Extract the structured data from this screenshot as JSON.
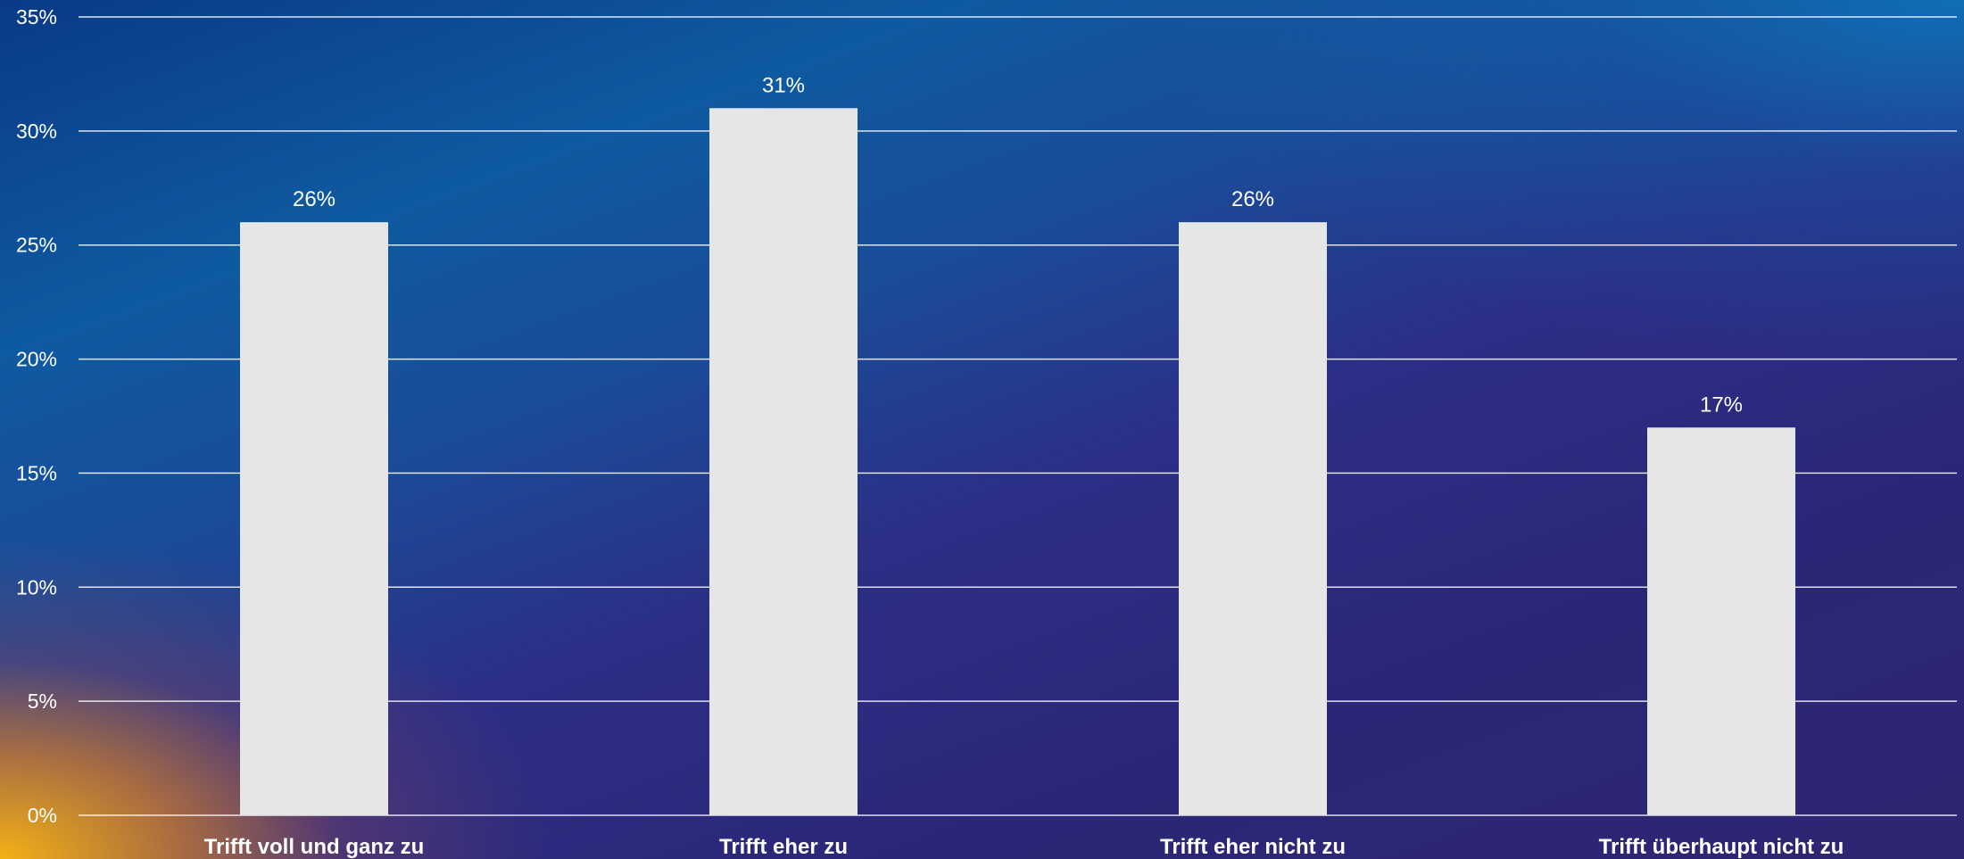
{
  "chart_data": {
    "type": "bar",
    "categories": [
      "Trifft voll und ganz zu",
      "Trifft eher zu",
      "Trifft eher nicht zu",
      "Trifft überhaupt nicht zu"
    ],
    "values": [
      26,
      31,
      26,
      17
    ],
    "data_labels": [
      "26%",
      "31%",
      "26%",
      "17%"
    ],
    "ylim": [
      0,
      35
    ],
    "y_ticks": [
      0,
      5,
      10,
      15,
      20,
      25,
      30,
      35
    ],
    "y_tick_labels": [
      "0%",
      "5%",
      "10%",
      "15%",
      "20%",
      "25%",
      "30%",
      "35%"
    ],
    "title": "",
    "xlabel": "",
    "ylabel": "",
    "grid": true,
    "legend": "none",
    "colors": {
      "bar": "#e6e6e6",
      "text": "#ffffff",
      "grid": "#ffffff"
    }
  }
}
